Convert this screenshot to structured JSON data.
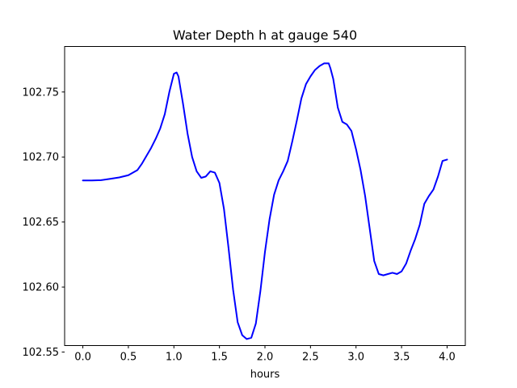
{
  "chart_data": {
    "type": "line",
    "title": "Water Depth h at gauge 540",
    "xlabel": "hours",
    "ylabel": "",
    "xlim": [
      -0.2,
      4.2
    ],
    "ylim": [
      102.555,
      102.785
    ],
    "x_ticks": [
      0.0,
      0.5,
      1.0,
      1.5,
      2.0,
      2.5,
      3.0,
      3.5,
      4.0
    ],
    "x_tick_labels": [
      "0.0",
      "0.5",
      "1.0",
      "1.5",
      "2.0",
      "2.5",
      "3.0",
      "3.5",
      "4.0"
    ],
    "y_ticks": [
      102.55,
      102.6,
      102.65,
      102.7,
      102.75
    ],
    "y_tick_labels": [
      "102.55",
      "102.60",
      "102.65",
      "102.70",
      "102.75"
    ],
    "grid": false,
    "series": [
      {
        "color": "#0000ff",
        "x": [
          0.0,
          0.1,
          0.2,
          0.3,
          0.4,
          0.5,
          0.6,
          0.65,
          0.7,
          0.75,
          0.8,
          0.85,
          0.9,
          0.95,
          1.0,
          1.03,
          1.05,
          1.1,
          1.15,
          1.2,
          1.25,
          1.3,
          1.35,
          1.4,
          1.45,
          1.5,
          1.55,
          1.6,
          1.65,
          1.7,
          1.75,
          1.8,
          1.85,
          1.9,
          1.95,
          2.0,
          2.05,
          2.1,
          2.15,
          2.2,
          2.25,
          2.3,
          2.35,
          2.4,
          2.45,
          2.5,
          2.55,
          2.6,
          2.65,
          2.7,
          2.72,
          2.75,
          2.8,
          2.85,
          2.9,
          2.95,
          3.0,
          3.05,
          3.1,
          3.15,
          3.2,
          3.25,
          3.3,
          3.35,
          3.4,
          3.45,
          3.5,
          3.55,
          3.6,
          3.65,
          3.7,
          3.75,
          3.8,
          3.85,
          3.9,
          3.95,
          4.0
        ],
        "y": [
          102.682,
          102.682,
          102.6822,
          102.6832,
          102.6843,
          102.686,
          102.69,
          102.695,
          102.701,
          102.707,
          102.714,
          102.722,
          102.733,
          102.75,
          102.764,
          102.765,
          102.762,
          102.741,
          102.718,
          102.7,
          102.689,
          102.684,
          102.685,
          102.689,
          102.688,
          102.68,
          102.66,
          102.63,
          102.598,
          102.573,
          102.563,
          102.56,
          102.561,
          102.572,
          102.597,
          102.627,
          102.652,
          102.671,
          102.682,
          102.689,
          102.697,
          102.712,
          102.728,
          102.745,
          102.756,
          102.762,
          102.767,
          102.77,
          102.772,
          102.772,
          102.768,
          102.76,
          102.738,
          102.727,
          102.725,
          102.72,
          102.706,
          102.69,
          102.67,
          102.645,
          102.62,
          102.61,
          102.609,
          102.61,
          102.611,
          102.61,
          102.612,
          102.618,
          102.628,
          102.637,
          102.648,
          102.664,
          102.67,
          102.675,
          102.685,
          102.697,
          102.698
        ]
      }
    ]
  }
}
